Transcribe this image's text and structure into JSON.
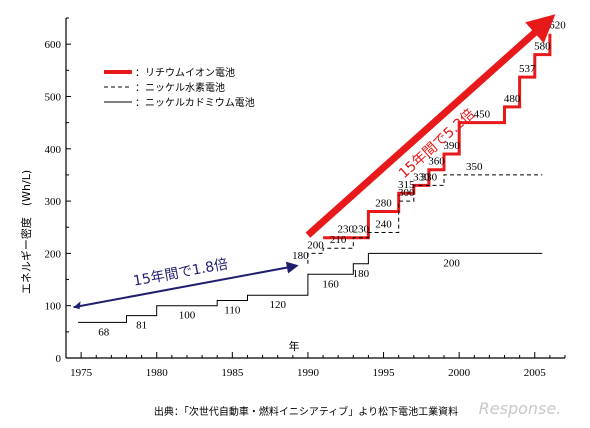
{
  "chart_data": {
    "type": "line",
    "ylabel": "エネルギー密度　(Wh/L)",
    "xlabel": "年",
    "xlim": [
      1974,
      2007
    ],
    "ylim": [
      0,
      650
    ],
    "x_ticks": [
      "1975",
      "1980",
      "1985",
      "1990",
      "1995",
      "2000",
      "2005"
    ],
    "y_ticks": [
      "0",
      "100",
      "200",
      "300",
      "400",
      "500",
      "600"
    ],
    "series": [
      {
        "name": "：リチウムイオン電池",
        "style": "solid-thick",
        "color": "#e8191a",
        "points": [
          [
            1991,
            230
          ],
          [
            1994,
            230
          ],
          [
            1994,
            280
          ],
          [
            1996,
            280
          ],
          [
            1996,
            315
          ],
          [
            1997,
            315
          ],
          [
            1997,
            330
          ],
          [
            1998,
            330
          ],
          [
            1998,
            360
          ],
          [
            1999,
            360
          ],
          [
            1999,
            390
          ],
          [
            2000,
            390
          ],
          [
            2000,
            450
          ],
          [
            2003,
            450
          ],
          [
            2003,
            480
          ],
          [
            2004,
            480
          ],
          [
            2004,
            537
          ],
          [
            2005,
            537
          ],
          [
            2005,
            580
          ],
          [
            2006,
            580
          ],
          [
            2006,
            620
          ]
        ],
        "labels": [
          {
            "text": "230",
            "x": 1992.5,
            "y": 230
          },
          {
            "text": "280",
            "x": 1995,
            "y": 280
          },
          {
            "text": "315",
            "x": 1996.5,
            "y": 315
          },
          {
            "text": "330",
            "x": 1997.5,
            "y": 330
          },
          {
            "text": "360",
            "x": 1998.5,
            "y": 360
          },
          {
            "text": "390",
            "x": 1999.5,
            "y": 390
          },
          {
            "text": "450",
            "x": 2001.5,
            "y": 450
          },
          {
            "text": "480",
            "x": 2003.5,
            "y": 480
          },
          {
            "text": "537",
            "x": 2004.5,
            "y": 537
          },
          {
            "text": "580",
            "x": 2005.5,
            "y": 580
          },
          {
            "text": "620",
            "x": 2006.5,
            "y": 620
          }
        ]
      },
      {
        "name": "：ニッケル水素電池",
        "style": "dashed",
        "color": "#000000",
        "points": [
          [
            1990,
            180
          ],
          [
            1990,
            200
          ],
          [
            1991,
            200
          ],
          [
            1991,
            210
          ],
          [
            1993,
            210
          ],
          [
            1993,
            230
          ],
          [
            1994,
            230
          ],
          [
            1994,
            240
          ],
          [
            1996,
            240
          ],
          [
            1996,
            300
          ],
          [
            1997,
            300
          ],
          [
            1997,
            330
          ],
          [
            1999,
            330
          ],
          [
            1999,
            350
          ],
          [
            2005.5,
            350
          ]
        ],
        "labels": [
          {
            "text": "180",
            "x": 1989.5,
            "y": 180
          },
          {
            "text": "200",
            "x": 1990.5,
            "y": 200
          },
          {
            "text": "210",
            "x": 1992,
            "y": 210
          },
          {
            "text": "230",
            "x": 1993.5,
            "y": 230
          },
          {
            "text": "240",
            "x": 1995,
            "y": 240
          },
          {
            "text": "300",
            "x": 1996.5,
            "y": 300
          },
          {
            "text": "330",
            "x": 1998,
            "y": 330
          },
          {
            "text": "350",
            "x": 2001,
            "y": 350
          }
        ]
      },
      {
        "name": "：ニッケルカドミウム電池",
        "style": "solid-thin",
        "color": "#000000",
        "points": [
          [
            1974.8,
            68
          ],
          [
            1978,
            68
          ],
          [
            1978,
            81
          ],
          [
            1980,
            81
          ],
          [
            1980,
            100
          ],
          [
            1984,
            100
          ],
          [
            1984,
            110
          ],
          [
            1986,
            110
          ],
          [
            1986,
            120
          ],
          [
            1990,
            120
          ],
          [
            1990,
            160
          ],
          [
            1993,
            160
          ],
          [
            1993,
            180
          ],
          [
            1994,
            180
          ],
          [
            1994,
            200
          ],
          [
            2005.5,
            200
          ]
        ],
        "labels": [
          {
            "text": "68",
            "x": 1976.5,
            "y": 68
          },
          {
            "text": "81",
            "x": 1979,
            "y": 81
          },
          {
            "text": "100",
            "x": 1982,
            "y": 100
          },
          {
            "text": "110",
            "x": 1985,
            "y": 110
          },
          {
            "text": "120",
            "x": 1988,
            "y": 120
          },
          {
            "text": "160",
            "x": 1991.5,
            "y": 160
          },
          {
            "text": "180",
            "x": 1993.5,
            "y": 180
          },
          {
            "text": "200",
            "x": 1999.5,
            "y": 200
          }
        ]
      }
    ],
    "annotations": [
      {
        "text": "15年間で1.8倍",
        "color": "#1f1f6e",
        "from": [
          1974.5,
          97
        ],
        "to": [
          1989,
          175
        ]
      },
      {
        "text": "15年間で5.2倍",
        "color": "#e8191a",
        "from": [
          1990,
          235
        ],
        "to": [
          2005.5,
          635
        ]
      }
    ],
    "source": "出典：「次世代自動車・燃料イニシアティブ」より松下電池工業資料",
    "watermark": "Response."
  }
}
